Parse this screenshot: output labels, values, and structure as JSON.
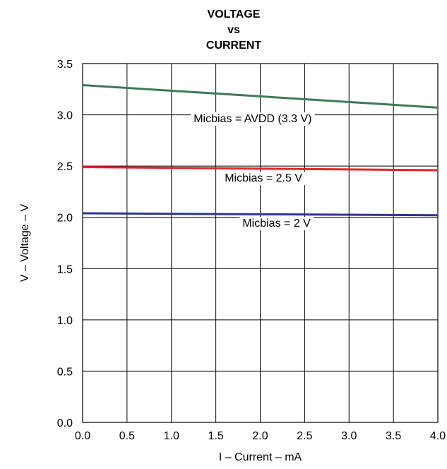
{
  "chart_data": {
    "type": "line",
    "title_lines": [
      "VOLTAGE",
      "vs",
      "CURRENT"
    ],
    "xlabel": "I – Current – mA",
    "ylabel": "V – Voltage – V",
    "xlim": [
      0,
      4
    ],
    "ylim": [
      0,
      3.5
    ],
    "x_ticks": [
      0,
      0.5,
      1,
      1.5,
      2,
      2.5,
      3,
      3.5,
      4
    ],
    "x_tick_labels": [
      "0.0",
      "0.5",
      "1.0",
      "1.5",
      "2.0",
      "2.5",
      "3.0",
      "3.5",
      "4.0"
    ],
    "y_ticks": [
      0,
      0.5,
      1,
      1.5,
      2,
      2.5,
      3,
      3.5
    ],
    "y_tick_labels": [
      "0.0",
      "0.5",
      "1.0",
      "1.5",
      "2.0",
      "2.5",
      "3.0",
      "3.5"
    ],
    "grid": true,
    "series": [
      {
        "name": "Micbias = AVDD (3.3 V)",
        "color": "#3f7a56",
        "x": [
          0,
          4
        ],
        "y": [
          3.29,
          3.07
        ]
      },
      {
        "name": "Micbias = 2.5 V",
        "color": "#e8202a",
        "x": [
          0,
          4
        ],
        "y": [
          2.49,
          2.46
        ]
      },
      {
        "name": "Micbias = 2 V",
        "color": "#2e3592",
        "x": [
          0,
          4
        ],
        "y": [
          2.04,
          2.02
        ]
      }
    ],
    "annotations": [
      {
        "text": "Micbias = AVDD (3.3 V)",
        "x": 1.25,
        "y": 2.97
      },
      {
        "text": "Micbias = 2.5 V",
        "x": 1.6,
        "y": 2.39
      },
      {
        "text": "Micbias = 2 V",
        "x": 1.8,
        "y": 1.95
      }
    ]
  }
}
